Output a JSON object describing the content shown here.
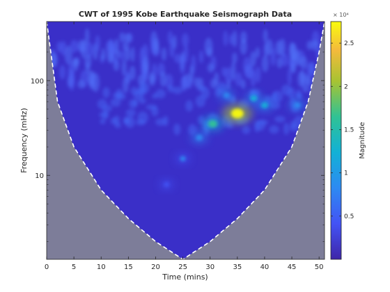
{
  "chart_data": {
    "type": "heatmap",
    "title": "CWT of 1995 Kobe Earthquake Seismograph Data",
    "xlabel": "Time (mins)",
    "ylabel": "Frequency (mHz)",
    "xlim": [
      0,
      51
    ],
    "ylim": [
      1.3,
      420
    ],
    "yscale": "log",
    "x_ticks": [
      0,
      5,
      10,
      15,
      20,
      25,
      30,
      35,
      40,
      45,
      50
    ],
    "x_tick_labels": [
      "0",
      "5",
      "10",
      "15",
      "20",
      "25",
      "30",
      "35",
      "40",
      "45",
      "50"
    ],
    "y_ticks": [
      10,
      100
    ],
    "y_tick_labels": [
      "10",
      "100"
    ],
    "colorbar": {
      "label": "Magnitude",
      "exponent_label": "× 10⁴",
      "range": [
        0,
        2.75
      ],
      "ticks": [
        0.5,
        1,
        1.5,
        2,
        2.5
      ],
      "tick_labels": [
        "0.5",
        "1",
        "1.5",
        "2",
        "2.5"
      ],
      "colormap": "parula"
    },
    "cone_of_influence": {
      "shaded_color": "#7d7d99",
      "time_mins": [
        0,
        2,
        5,
        10,
        15,
        20,
        25,
        30,
        35,
        40,
        45,
        48,
        50,
        51
      ],
      "frequency_mHz": [
        420,
        60,
        20,
        7,
        3.5,
        2,
        1.3,
        2,
        3.5,
        7,
        20,
        60,
        200,
        420
      ]
    },
    "hotspots": [
      {
        "time_mins": 35,
        "frequency_mHz": 45,
        "magnitude": 2.7
      },
      {
        "time_mins": 30.5,
        "frequency_mHz": 35,
        "magnitude": 1.5
      },
      {
        "time_mins": 40,
        "frequency_mHz": 55,
        "magnitude": 1.0
      },
      {
        "time_mins": 38,
        "frequency_mHz": 65,
        "magnitude": 0.9
      },
      {
        "time_mins": 46,
        "frequency_mHz": 55,
        "magnitude": 0.8
      },
      {
        "time_mins": 28,
        "frequency_mHz": 25,
        "magnitude": 0.8
      },
      {
        "time_mins": 33,
        "frequency_mHz": 70,
        "magnitude": 0.7
      },
      {
        "time_mins": 25,
        "frequency_mHz": 15,
        "magnitude": 0.5
      },
      {
        "time_mins": 22,
        "frequency_mHz": 8,
        "magnitude": 0.4
      }
    ]
  }
}
